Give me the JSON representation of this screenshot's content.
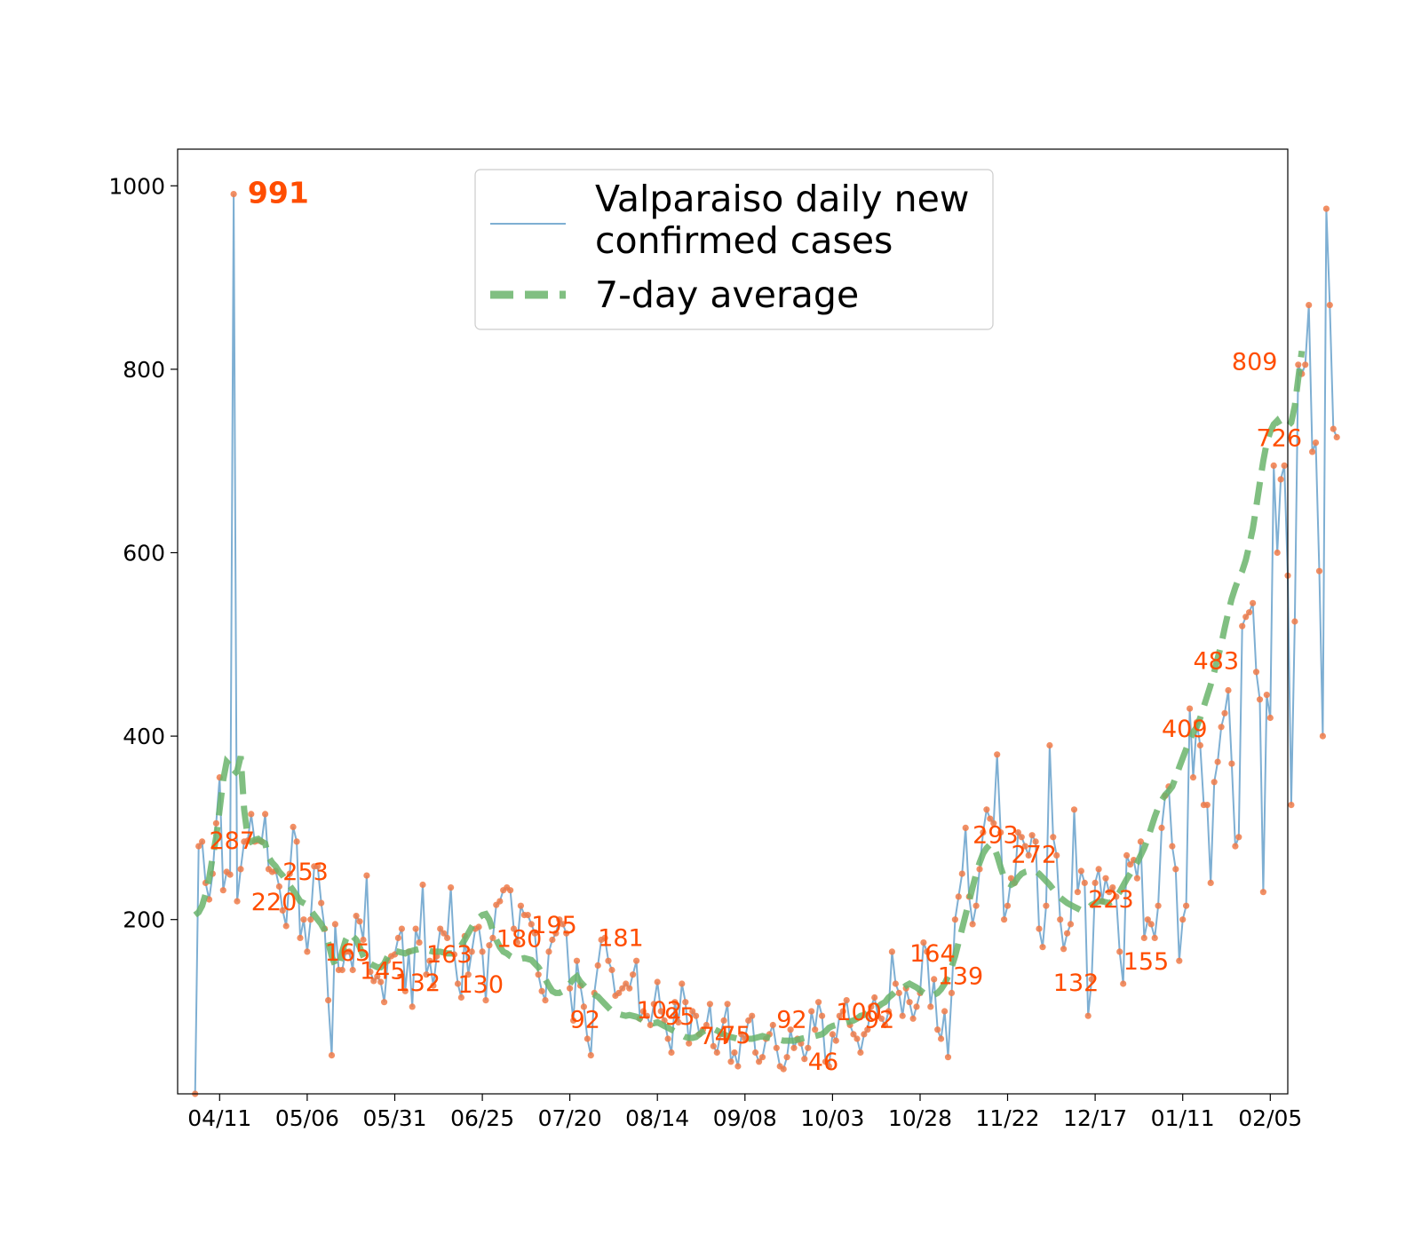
{
  "chart_data": {
    "type": "line",
    "title": "",
    "xlabel": "",
    "ylabel": "",
    "x_start": "04/04",
    "xlim": [
      "03/30",
      "02/10"
    ],
    "ylim": [
      10,
      1040
    ],
    "x_ticks": [
      {
        "date": "04/11",
        "label": "04/11"
      },
      {
        "date": "05/06",
        "label": "05/06"
      },
      {
        "date": "05/31",
        "label": "05/31"
      },
      {
        "date": "06/25",
        "label": "06/25"
      },
      {
        "date": "07/20",
        "label": "07/20"
      },
      {
        "date": "08/14",
        "label": "08/14"
      },
      {
        "date": "09/08",
        "label": "09/08"
      },
      {
        "date": "10/03",
        "label": "10/03"
      },
      {
        "date": "10/28",
        "label": "10/28"
      },
      {
        "date": "11/22",
        "label": "11/22"
      },
      {
        "date": "12/17",
        "label": "12/17"
      },
      {
        "date": "01/11",
        "label": "01/11"
      },
      {
        "date": "02/05",
        "label": "02/05"
      }
    ],
    "y_ticks": [
      200,
      400,
      600,
      800,
      1000
    ],
    "grid": false,
    "legend": {
      "position": "top-center",
      "entries": [
        {
          "label_lines": [
            "Valparaiso daily new",
            "confirmed cases"
          ]
        },
        {
          "label_lines": [
            "7-day average"
          ]
        }
      ]
    },
    "colors": {
      "daily_line": "#7eafd3",
      "markers": "#f07b49",
      "average": "#6ab46b",
      "annotations": "#ff4d00"
    },
    "series": [
      {
        "style": "line-with-markers",
        "values": [
          10,
          280,
          285,
          240,
          222,
          250,
          305,
          355,
          232,
          252,
          249,
          991,
          220,
          255,
          285,
          286,
          315,
          285,
          286,
          285,
          315,
          255,
          252,
          253,
          236,
          210,
          193,
          250,
          301,
          285,
          180,
          200,
          165,
          200,
          258,
          258,
          218,
          190,
          112,
          52,
          195,
          145,
          145,
          165,
          165,
          145,
          204,
          198,
          178,
          248,
          143,
          133,
          138,
          132,
          110,
          155,
          160,
          162,
          180,
          190,
          122,
          165,
          105,
          190,
          175,
          238,
          140,
          155,
          128,
          160,
          190,
          185,
          180,
          235,
          162,
          130,
          115,
          182,
          140,
          165,
          190,
          192,
          165,
          112,
          172,
          180,
          216,
          220,
          232,
          235,
          232,
          190,
          175,
          215,
          205,
          205,
          195,
          185,
          140,
          122,
          112,
          165,
          178,
          185,
          200,
          195,
          185,
          125,
          90,
          155,
          128,
          105,
          70,
          52,
          120,
          150,
          178,
          180,
          155,
          145,
          117,
          120,
          125,
          130,
          125,
          140,
          155,
          92,
          100,
          95,
          85,
          108,
          132,
          100,
          90,
          70,
          55,
          110,
          88,
          130,
          110,
          65,
          100,
          95,
          75,
          80,
          85,
          108,
          62,
          55,
          75,
          90,
          108,
          45,
          55,
          40,
          75,
          70,
          90,
          95,
          55,
          45,
          50,
          70,
          75,
          85,
          60,
          40,
          37,
          50,
          80,
          60,
          70,
          65,
          48,
          60,
          100,
          80,
          110,
          95,
          45,
          40,
          75,
          68,
          95,
          100,
          112,
          85,
          75,
          70,
          55,
          75,
          80,
          105,
          115,
          95,
          92,
          85,
          100,
          165,
          130,
          120,
          95,
          125,
          110,
          92,
          105,
          120,
          175,
          165,
          105,
          135,
          80,
          70,
          100,
          50,
          120,
          200,
          225,
          250,
          300,
          225,
          195,
          215,
          255,
          295,
          320,
          310,
          305,
          380,
          295,
          200,
          215,
          245,
          240,
          295,
          290,
          280,
          270,
          292,
          285,
          190,
          170,
          215,
          390,
          290,
          270,
          200,
          168,
          185,
          195,
          320,
          230,
          253,
          240,
          95,
          135,
          240,
          255,
          220,
          245,
          230,
          235,
          225,
          165,
          130,
          270,
          260,
          265,
          245,
          285,
          180,
          200,
          195,
          180,
          215,
          300,
          335,
          345,
          280,
          255,
          155,
          200,
          215,
          430,
          355,
          415,
          390,
          325,
          325,
          240,
          350,
          372,
          410,
          425,
          450,
          370,
          280,
          290,
          520,
          530,
          535,
          545,
          470,
          440,
          230,
          445,
          420,
          695,
          600,
          680,
          695,
          575,
          325,
          525,
          805,
          795,
          805,
          870,
          710,
          720,
          580,
          400,
          975,
          870,
          735,
          726
        ]
      },
      {
        "style": "dashed",
        "values": [
          205,
          208,
          215,
          228,
          245,
          268,
          290,
          320,
          352,
          372,
          368,
          358,
          362,
          378,
          320,
          290,
          285,
          287,
          288,
          285,
          283,
          268,
          262,
          258,
          252,
          248,
          242,
          237,
          232,
          226,
          220,
          218,
          216,
          210,
          205,
          200,
          195,
          188,
          175,
          160,
          150,
          148,
          165,
          178,
          185,
          182,
          178,
          170,
          160,
          152,
          152,
          150,
          148,
          148,
          152,
          160,
          165,
          166,
          165,
          164,
          163,
          165,
          166,
          167,
          168,
          168,
          167,
          166,
          165,
          165,
          165,
          164,
          163,
          163,
          164,
          167,
          172,
          178,
          185,
          192,
          198,
          202,
          205,
          206,
          200,
          188,
          178,
          170,
          165,
          163,
          160,
          158,
          158,
          157,
          158,
          157,
          156,
          152,
          148,
          142,
          135,
          128,
          122,
          120,
          120,
          122,
          125,
          130,
          135,
          138,
          132,
          128,
          124,
          120,
          118,
          116,
          112,
          108,
          104,
          100,
          98,
          97,
          96,
          95,
          96,
          95,
          94,
          92,
          90,
          88,
          88,
          87,
          88,
          86,
          84,
          82,
          80,
          78,
          76,
          74,
          72,
          71,
          71,
          72,
          75,
          78,
          80,
          82,
          81,
          79,
          77,
          75,
          73,
          72,
          71,
          70,
          69,
          69,
          70,
          70,
          71,
          72,
          73,
          72,
          71,
          70,
          70,
          69,
          68,
          68,
          68,
          68,
          69,
          70,
          71,
          72,
          72,
          73,
          74,
          75,
          78,
          82,
          84,
          85,
          86,
          87,
          88,
          89,
          90,
          92,
          95,
          96,
          98,
          100,
          102,
          105,
          108,
          110,
          115,
          118,
          122,
          123,
          125,
          128,
          130,
          128,
          126,
          123,
          120,
          118,
          117,
          118,
          120,
          124,
          130,
          138,
          148,
          160,
          175,
          190,
          205,
          220,
          235,
          250,
          262,
          272,
          278,
          282,
          280,
          270,
          257,
          246,
          240,
          238,
          240,
          246,
          250,
          252,
          253,
          253,
          253,
          250,
          246,
          242,
          238,
          233,
          228,
          224,
          221,
          218,
          216,
          214,
          212,
          210,
          210,
          212,
          216,
          218,
          220,
          220,
          219,
          218,
          220,
          225,
          230,
          237,
          244,
          250,
          256,
          262,
          270,
          278,
          288,
          300,
          312,
          322,
          330,
          336,
          340,
          345,
          355,
          366,
          376,
          386,
          396,
          404,
          410,
          420,
          432,
          444,
          456,
          470,
          485,
          500,
          518,
          535,
          550,
          562,
          572,
          580,
          592,
          608,
          626,
          650,
          676,
          700,
          720,
          732,
          740,
          744,
          738,
          736,
          738,
          742,
          760,
          790,
          820
        ]
      }
    ],
    "annotations": [
      {
        "date": "04/19",
        "value": 991,
        "label": "991",
        "bold": true
      },
      {
        "date": "04/08",
        "value": 287,
        "label": "287"
      },
      {
        "date": "04/20",
        "value": 220,
        "label": "220"
      },
      {
        "date": "04/29",
        "value": 253,
        "label": "253"
      },
      {
        "date": "05/11",
        "value": 165,
        "label": "165"
      },
      {
        "date": "05/21",
        "value": 145,
        "label": "145"
      },
      {
        "date": "05/31",
        "value": 132,
        "label": "132"
      },
      {
        "date": "06/09",
        "value": 163,
        "label": "163"
      },
      {
        "date": "06/18",
        "value": 130,
        "label": "130"
      },
      {
        "date": "06/29",
        "value": 180,
        "label": "180"
      },
      {
        "date": "07/09",
        "value": 195,
        "label": "195"
      },
      {
        "date": "07/20",
        "value": 92,
        "label": "92"
      },
      {
        "date": "07/28",
        "value": 181,
        "label": "181"
      },
      {
        "date": "08/08",
        "value": 102,
        "label": "102"
      },
      {
        "date": "08/16",
        "value": 95,
        "label": "95"
      },
      {
        "date": "08/26",
        "value": 74,
        "label": "74"
      },
      {
        "date": "09/01",
        "value": 75,
        "label": "75"
      },
      {
        "date": "09/17",
        "value": 92,
        "label": "92"
      },
      {
        "date": "09/26",
        "value": 46,
        "label": "46"
      },
      {
        "date": "10/04",
        "value": 100,
        "label": "100"
      },
      {
        "date": "10/12",
        "value": 92,
        "label": "92"
      },
      {
        "date": "10/25",
        "value": 164,
        "label": "164"
      },
      {
        "date": "11/02",
        "value": 139,
        "label": "139"
      },
      {
        "date": "11/12",
        "value": 293,
        "label": "293"
      },
      {
        "date": "11/23",
        "value": 272,
        "label": "272"
      },
      {
        "date": "12/05",
        "value": 132,
        "label": "132"
      },
      {
        "date": "12/15",
        "value": 223,
        "label": "223"
      },
      {
        "date": "12/25",
        "value": 155,
        "label": "155"
      },
      {
        "date": "01/05",
        "value": 409,
        "label": "409"
      },
      {
        "date": "01/14",
        "value": 483,
        "label": "483"
      },
      {
        "date": "01/25",
        "value": 809,
        "label": "809"
      },
      {
        "date": "02/01",
        "value": 726,
        "label": "726"
      }
    ]
  }
}
